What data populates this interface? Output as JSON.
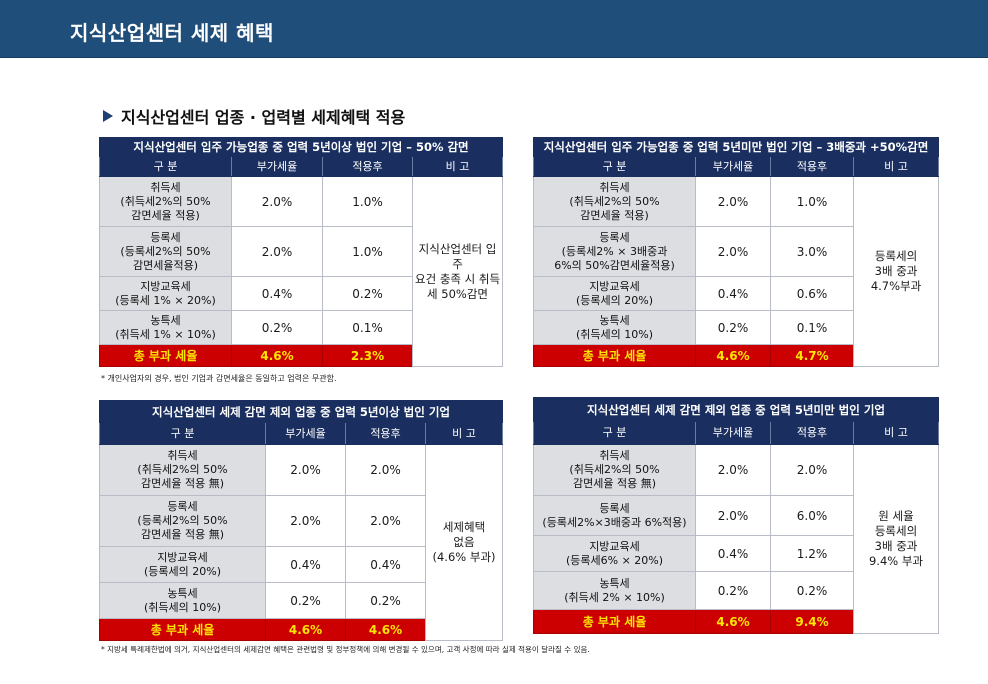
{
  "header": {
    "title": "지식산업센터 세제 혜택"
  },
  "section": {
    "title": "지식산업센터 업종 · 업력별 세제혜택 적용"
  },
  "colors": {
    "header_bg": "#1f4e7a",
    "table_header": "#1a2f5f",
    "total_bg": "#cc0000",
    "total_text": "#ffe600"
  },
  "tables": [
    {
      "caption": "지식산업센터 입주 가능업종 중 업력 5년이상 법인 기업 – 50% 감면",
      "columns": [
        "구 분",
        "부가세율",
        "적용후",
        "비 고"
      ],
      "rows": [
        {
          "l1": "취득세",
          "l2": "(취득세2%의 50%",
          "l3": "감면세율 적용)",
          "rate": "2.0%",
          "after": "1.0%"
        },
        {
          "l1": "등록세",
          "l2": "(등록세2%의 50%",
          "l3": "감면세율적용)",
          "rate": "2.0%",
          "after": "1.0%"
        },
        {
          "l1": "지방교육세",
          "l2": "(등록세 1% × 20%)",
          "rate": "0.4%",
          "after": "0.2%"
        },
        {
          "l1": "농특세",
          "l2": "(취득세 1% × 10%)",
          "rate": "0.2%",
          "after": "0.1%"
        }
      ],
      "note": [
        "지식산업센터 입주",
        "요건 충족 시 취득",
        "세 50%감면"
      ],
      "total": {
        "label": "총 부과 세율",
        "rate": "4.6%",
        "after": "2.3%"
      }
    },
    {
      "caption": "지식산업센터 입주 가능업종 중 업력 5년미만 법인 기업 – 3배중과 +50%감면",
      "columns": [
        "구 분",
        "부가세율",
        "적용후",
        "비 고"
      ],
      "rows": [
        {
          "l1": "취득세",
          "l2": "(취득세2%의 50%",
          "l3": "감면세율 적용)",
          "rate": "2.0%",
          "after": "1.0%"
        },
        {
          "l1": "등록세",
          "l2": "(등록세2% × 3배중과",
          "l3": "6%의 50%감면세율적용)",
          "rate": "2.0%",
          "after": "3.0%"
        },
        {
          "l1": "지방교육세",
          "l2": "(등록세의 20%)",
          "rate": "0.4%",
          "after": "0.6%"
        },
        {
          "l1": "농특세",
          "l2": "(취득세의 10%)",
          "rate": "0.2%",
          "after": "0.1%"
        }
      ],
      "note": [
        "등록세의",
        "3배 중과",
        "4.7%부과"
      ],
      "total": {
        "label": "총 부과 세율",
        "rate": "4.6%",
        "after": "4.7%"
      }
    },
    {
      "caption": "지식산업센터 세제 감면 제외 업종 중 업력 5년이상 법인 기업",
      "columns": [
        "구 분",
        "부가세율",
        "적용후",
        "비 고"
      ],
      "rows": [
        {
          "l1": "취득세",
          "l2": "(취득세2%의 50%",
          "l3": "감면세율 적용 無)",
          "rate": "2.0%",
          "after": "2.0%"
        },
        {
          "l1": "등록세",
          "l2": "(등록세2%의 50%",
          "l3": "감면세율 적용 無)",
          "rate": "2.0%",
          "after": "2.0%"
        },
        {
          "l1": "지방교육세",
          "l2": "(등록세의 20%)",
          "rate": "0.4%",
          "after": "0.4%"
        },
        {
          "l1": "농특세",
          "l2": "(취득세의 10%)",
          "rate": "0.2%",
          "after": "0.2%"
        }
      ],
      "note": [
        "세제혜택",
        "없음",
        "(4.6% 부과)"
      ],
      "total": {
        "label": "총 부과 세율",
        "rate": "4.6%",
        "after": "4.6%"
      }
    },
    {
      "caption": "지식산업센터 세제 감면 제외 업종 중 업력 5년미만 법인 기업",
      "columns": [
        "구 분",
        "부가세율",
        "적용후",
        "비 고"
      ],
      "rows": [
        {
          "l1": "취득세",
          "l2": "(취득세2%의 50%",
          "l3": "감면세율 적용 無)",
          "rate": "2.0%",
          "after": "2.0%"
        },
        {
          "l1": "등록세",
          "l2": "(등록세2%×3배중과 6%적용)",
          "rate": "2.0%",
          "after": "6.0%"
        },
        {
          "l1": "지방교육세",
          "l2": "(등록세6% × 20%)",
          "rate": "0.4%",
          "after": "1.2%"
        },
        {
          "l1": "농특세",
          "l2": "(취득세 2% × 10%)",
          "rate": "0.2%",
          "after": "0.2%"
        }
      ],
      "note": [
        "원 세율",
        "등록세의",
        "3배 중과",
        "9.4% 부과"
      ],
      "total": {
        "label": "총 부과 세율",
        "rate": "4.6%",
        "after": "9.4%"
      }
    }
  ],
  "footnotes": {
    "first": "* 개인사업자의 경우, 법인 기업과 감면세율은 동일하고 업력은 무관함.",
    "second": "* 지방세 특례제한법에 의거, 지식산업센터의 세제감면 혜택은 관련법령 및 정부정책에 의해 변경될 수 있으며, 고객 사정에 따라 실제 적용이 달라질 수 있음."
  }
}
